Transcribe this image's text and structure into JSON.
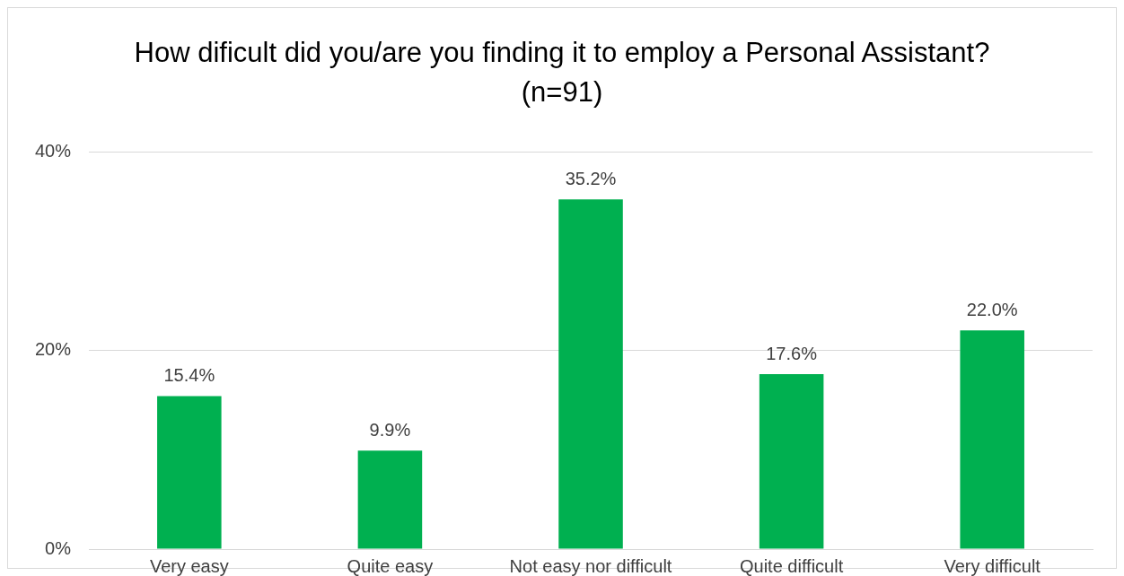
{
  "chart_data": {
    "type": "bar",
    "title": "How dificult did you/are you finding it to employ a Personal Assistant? (n=91)",
    "categories": [
      "Very easy",
      "Quite easy",
      "Not easy nor difficult",
      "Quite difficult",
      "Very difficult"
    ],
    "values": [
      15.4,
      9.9,
      35.2,
      17.6,
      22.0
    ],
    "value_labels": [
      "15.4%",
      "9.9%",
      "35.2%",
      "17.6%",
      "22.0%"
    ],
    "color": "#00b050",
    "ylim": [
      0,
      40
    ],
    "yticks": [
      {
        "value": 0,
        "label": "0%"
      },
      {
        "value": 20,
        "label": "20%"
      },
      {
        "value": 40,
        "label": "40%"
      }
    ],
    "grid": "y",
    "legend": false
  }
}
